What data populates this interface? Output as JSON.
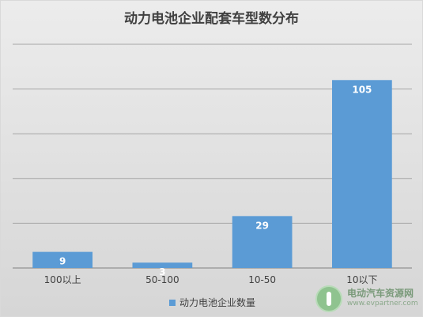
{
  "chart_data": {
    "type": "bar",
    "title": "动力电池企业配套车型数分布",
    "categories": [
      "100以上",
      "50-100",
      "10-50",
      "10以下"
    ],
    "series": [
      {
        "name": "动力电池企业数量",
        "values": [
          9,
          3,
          29,
          105
        ],
        "color": "#5b9bd5"
      }
    ],
    "ylim": [
      0,
      125
    ],
    "grid": true,
    "legend": "bottom",
    "data_labels": true,
    "xlabel": "",
    "ylabel": ""
  },
  "watermark": {
    "name": "电动汽车资源网",
    "url": "www.evpartner.com",
    "logo_icon": "leaf-plug-icon"
  }
}
